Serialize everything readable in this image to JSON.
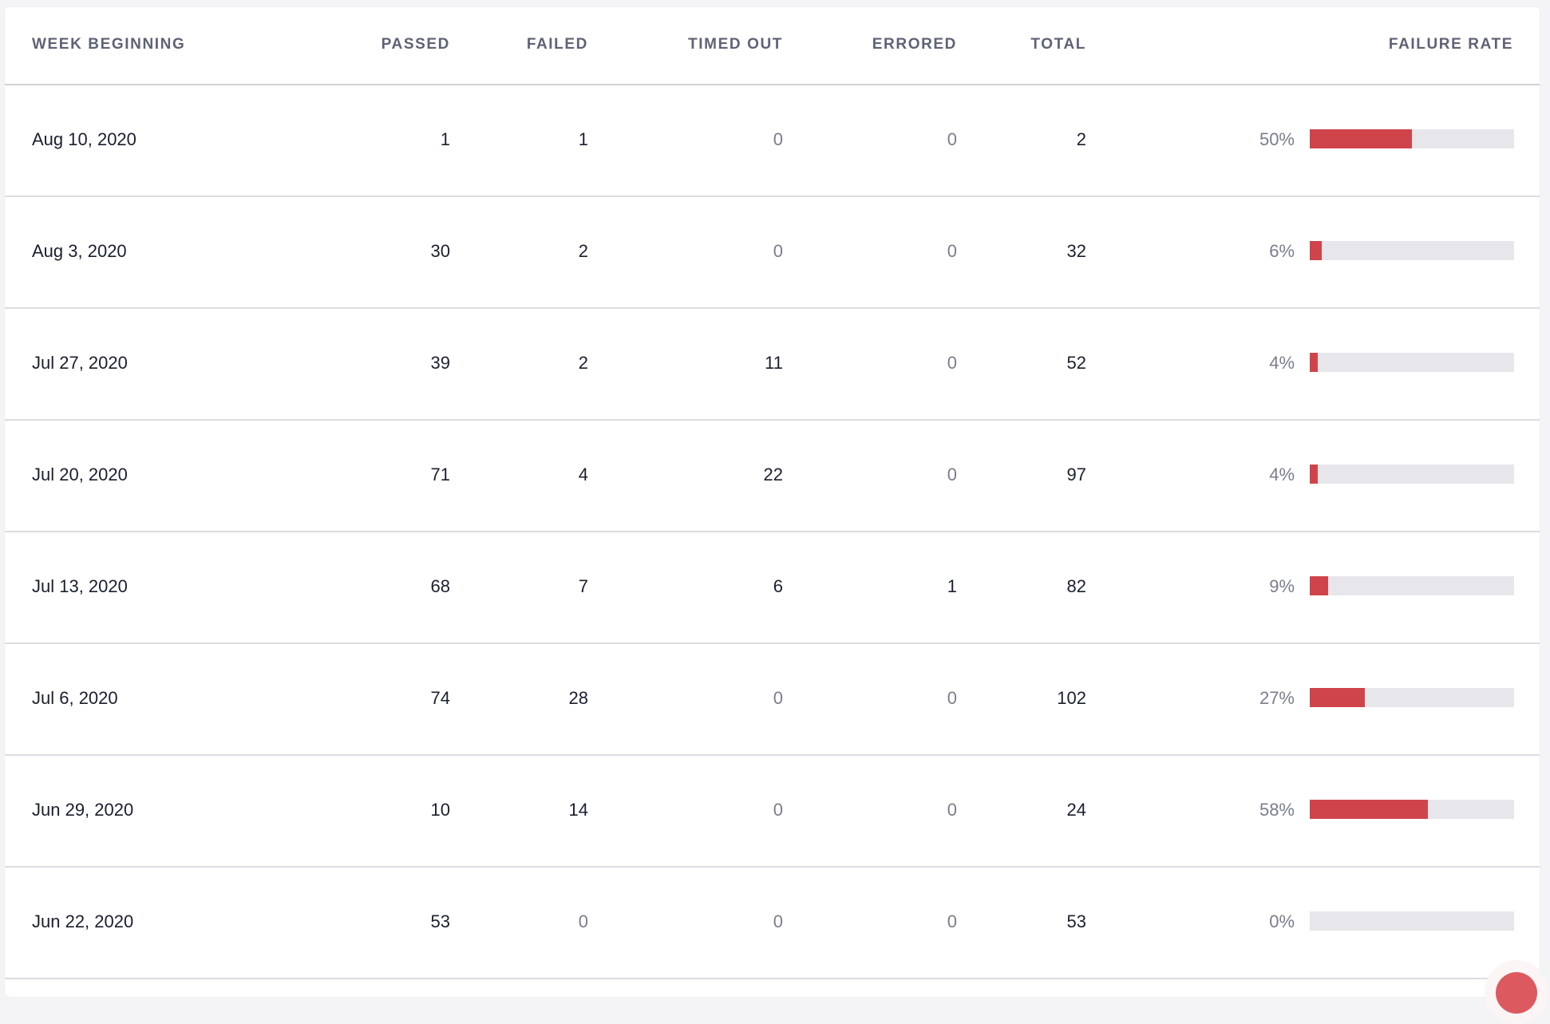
{
  "table": {
    "headers": {
      "week": "WEEK BEGINNING",
      "passed": "PASSED",
      "failed": "FAILED",
      "timed_out": "TIMED OUT",
      "errored": "ERRORED",
      "total": "TOTAL",
      "failure_rate": "FAILURE RATE"
    },
    "rows": [
      {
        "week": "Aug 10, 2020",
        "passed": "1",
        "failed": "1",
        "timed_out": "0",
        "errored": "0",
        "total": "2",
        "failure_rate": "50%",
        "rate_value": 50
      },
      {
        "week": "Aug 3, 2020",
        "passed": "30",
        "failed": "2",
        "timed_out": "0",
        "errored": "0",
        "total": "32",
        "failure_rate": "6%",
        "rate_value": 6
      },
      {
        "week": "Jul 27, 2020",
        "passed": "39",
        "failed": "2",
        "timed_out": "11",
        "errored": "0",
        "total": "52",
        "failure_rate": "4%",
        "rate_value": 4
      },
      {
        "week": "Jul 20, 2020",
        "passed": "71",
        "failed": "4",
        "timed_out": "22",
        "errored": "0",
        "total": "97",
        "failure_rate": "4%",
        "rate_value": 4
      },
      {
        "week": "Jul 13, 2020",
        "passed": "68",
        "failed": "7",
        "timed_out": "6",
        "errored": "1",
        "total": "82",
        "failure_rate": "9%",
        "rate_value": 9
      },
      {
        "week": "Jul 6, 2020",
        "passed": "74",
        "failed": "28",
        "timed_out": "0",
        "errored": "0",
        "total": "102",
        "failure_rate": "27%",
        "rate_value": 27
      },
      {
        "week": "Jun 29, 2020",
        "passed": "10",
        "failed": "14",
        "timed_out": "0",
        "errored": "0",
        "total": "24",
        "failure_rate": "58%",
        "rate_value": 58
      },
      {
        "week": "Jun 22, 2020",
        "passed": "53",
        "failed": "0",
        "timed_out": "0",
        "errored": "0",
        "total": "53",
        "failure_rate": "0%",
        "rate_value": 0
      }
    ]
  },
  "colors": {
    "failure_bar": "#cf444b",
    "bar_track": "#e6e6eb",
    "fab": "#dc5a5f"
  }
}
